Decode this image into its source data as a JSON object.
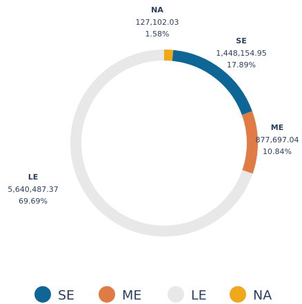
{
  "chart_data": {
    "type": "donut",
    "categories": [
      "SE",
      "ME",
      "LE",
      "NA"
    ],
    "values": [
      1448154.95,
      877697.04,
      5640487.37,
      127102.03
    ],
    "value_labels": [
      "1,448,154.95",
      "877,697.04",
      "5,640,487.37",
      "127,102.03"
    ],
    "percents": [
      17.89,
      10.84,
      69.69,
      1.58
    ],
    "percent_labels": [
      "17.89%",
      "10.84%",
      "69.69%",
      "1.58%"
    ],
    "colors": [
      "#0e6697",
      "#e07b45",
      "#e8e8e8",
      "#f0a81a"
    ]
  }
}
